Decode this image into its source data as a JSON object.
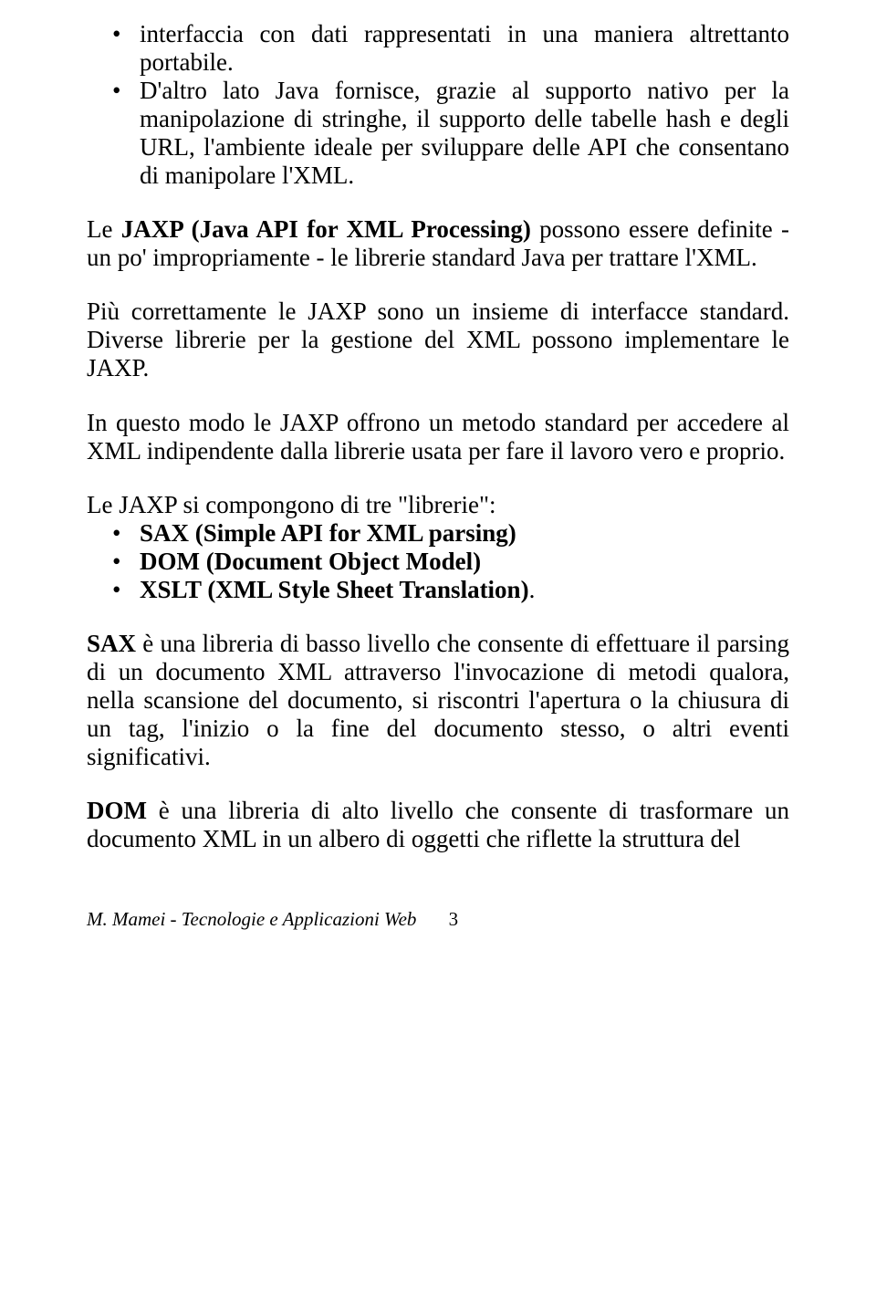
{
  "bullets1": {
    "item1": "interfaccia con dati rappresentati in una maniera altrettanto portabile.",
    "item2": "D'altro lato Java fornisce, grazie al supporto nativo per la manipolazione di stringhe, il supporto delle tabelle hash e degli URL, l'ambiente ideale per sviluppare delle API che consentano di manipolare l'XML."
  },
  "para1_pre": "Le ",
  "para1_bold": "JAXP (Java API for XML Processing)",
  "para1_post": " possono essere definite - un po' impropriamente - le librerie standard Java per trattare l'XML.",
  "para2": "Più correttamente le JAXP sono un insieme di interfacce standard. Diverse librerie per la gestione del XML possono implementare le JAXP.",
  "para3": "In questo modo le JAXP offrono un metodo standard per accedere al XML indipendente dalla librerie usata per fare il lavoro vero e proprio.",
  "para4": "Le JAXP si compongono di tre \"librerie\":",
  "bullets2": {
    "item1": "SAX (Simple API for XML parsing)",
    "item2": "DOM (Document Object Model)",
    "item3": "XSLT (XML Style Sheet Translation).",
    "item3_pre": "XSLT (XML Style Sheet Translation)",
    "item3_post": "."
  },
  "para5_bold": "SAX",
  "para5_post": " è una libreria di basso livello che consente di effettuare il parsing di un documento XML attraverso l'invocazione di metodi qualora, nella scansione del documento, si riscontri l'apertura o la chiusura di un tag, l'inizio o la fine del documento stesso, o altri eventi significativi.",
  "para6_bold": "DOM",
  "para6_post": " è una libreria di alto livello che consente di trasformare un documento XML in un albero di oggetti che riflette la struttura del",
  "footer": {
    "text": "M. Mamei - Tecnologie e Applicazioni Web",
    "page": "3"
  }
}
